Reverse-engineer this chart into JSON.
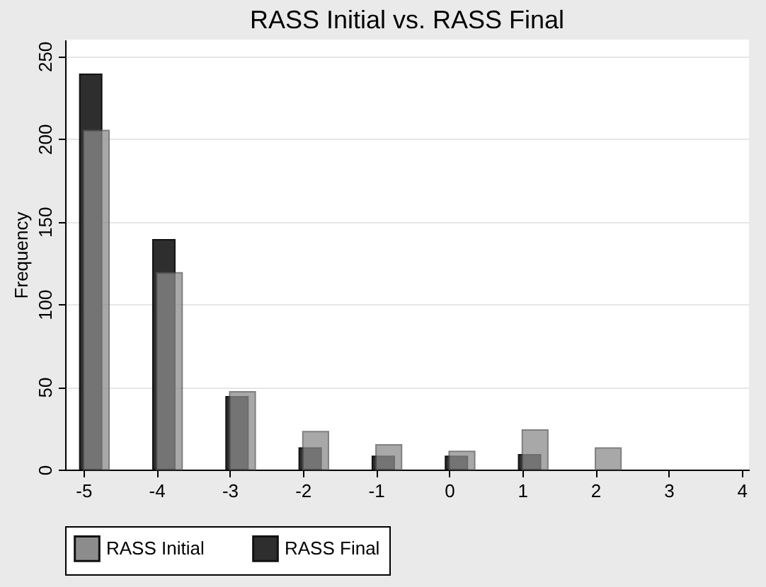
{
  "chart_data": {
    "type": "bar",
    "title": "RASS Initial vs. RASS Final",
    "ylabel": "Frequency",
    "x": [
      -5,
      -4,
      -3,
      -2,
      -1,
      0,
      1,
      2
    ],
    "series": [
      {
        "name": "RASS Initial",
        "color": "#8c8c8c",
        "values": [
          205,
          119,
          47,
          23,
          15,
          11,
          24,
          13
        ]
      },
      {
        "name": "RASS Final",
        "color": "#2e2e2e",
        "values": [
          239,
          139,
          44,
          13,
          8,
          8,
          9,
          null
        ]
      }
    ],
    "xlim": [
      -5.25,
      4.1
    ],
    "xticks": [
      -5,
      -4,
      -3,
      -2,
      -1,
      0,
      1,
      2,
      3,
      4
    ],
    "ylim": [
      0,
      260
    ],
    "yticks": [
      0,
      50,
      100,
      150,
      200,
      250
    ],
    "grid": "y",
    "legend": "bottom"
  }
}
